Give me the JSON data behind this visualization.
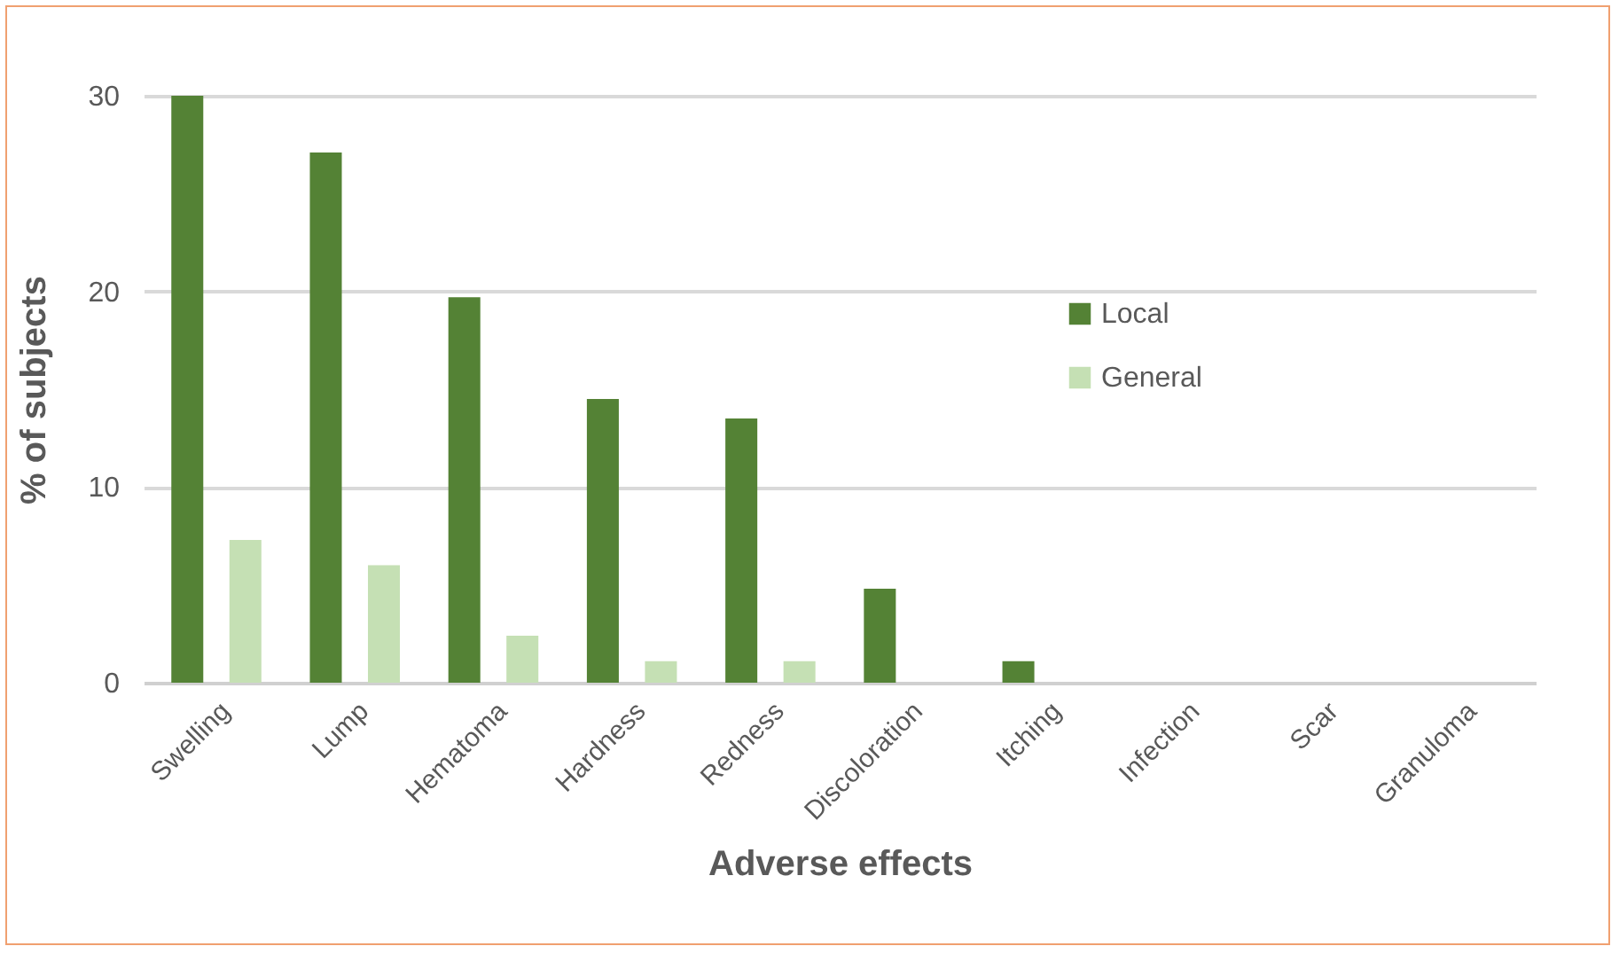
{
  "chart_data": {
    "type": "bar",
    "xlabel": "Adverse effects",
    "ylabel": "% of subjects",
    "categories": [
      "Swelling",
      "Lump",
      "Hematoma",
      "Hardness",
      "Redness",
      "Discoloration",
      "Itching",
      "Infection",
      "Scar",
      "Granuloma"
    ],
    "series": [
      {
        "name": "Local",
        "color": "#548235",
        "values": [
          30,
          27.1,
          19.7,
          14.5,
          13.5,
          4.8,
          1.1,
          0,
          0,
          0
        ]
      },
      {
        "name": "General",
        "color": "#c5e0b4",
        "values": [
          7.3,
          6.0,
          2.4,
          1.1,
          1.1,
          0,
          0,
          0,
          0,
          0
        ]
      }
    ],
    "ylim": [
      0,
      30
    ],
    "yticks": [
      0,
      10,
      20,
      30
    ],
    "grid": "y",
    "legend": "right"
  }
}
